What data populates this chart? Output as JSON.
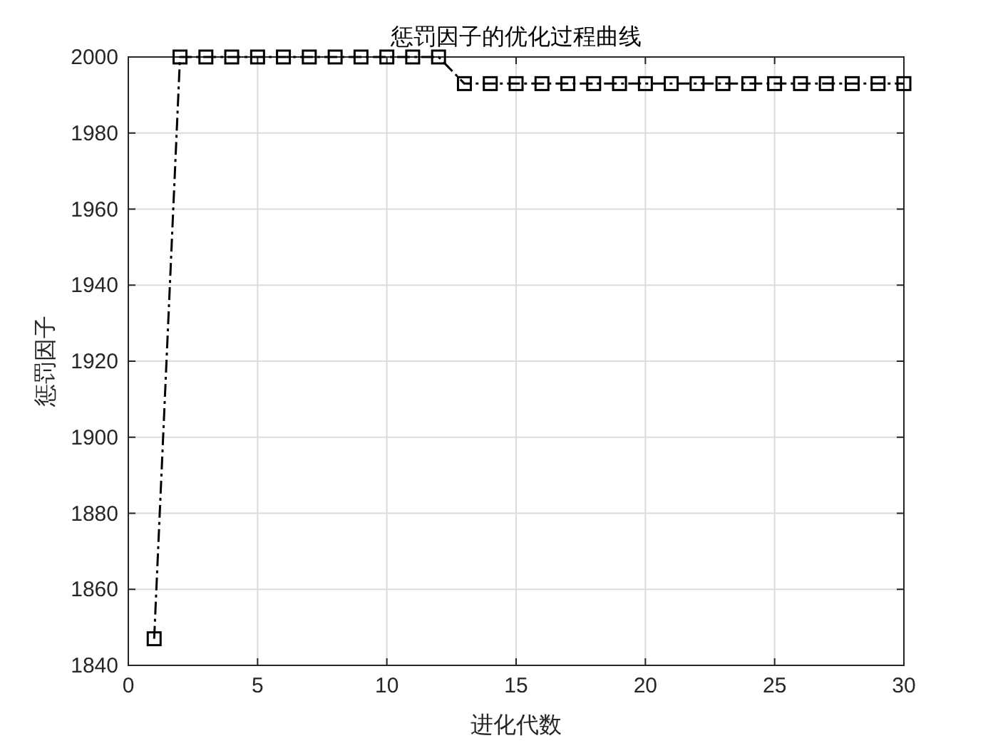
{
  "chart_data": {
    "type": "line",
    "title": "惩罚因子的优化过程曲线",
    "xlabel": "进化代数",
    "ylabel": "惩罚因子",
    "x": [
      1,
      2,
      3,
      4,
      5,
      6,
      7,
      8,
      9,
      10,
      11,
      12,
      13,
      14,
      15,
      16,
      17,
      18,
      19,
      20,
      21,
      22,
      23,
      24,
      25,
      26,
      27,
      28,
      29,
      30
    ],
    "series": [
      {
        "color": "#000000",
        "values": [
          1847,
          2000,
          2000,
          2000,
          2000,
          2000,
          2000,
          2000,
          2000,
          2000,
          2000,
          2000,
          1993,
          1993,
          1993,
          1993,
          1993,
          1993,
          1993,
          1993,
          1993,
          1993,
          1993,
          1993,
          1993,
          1993,
          1993,
          1993,
          1993,
          1993
        ]
      }
    ],
    "xlim": [
      0,
      30
    ],
    "xticks": [
      0,
      5,
      10,
      15,
      20,
      25,
      30
    ],
    "ylim": [
      1840,
      2000
    ],
    "yticks": [
      1840,
      1860,
      1880,
      1900,
      1920,
      1940,
      1960,
      1980,
      2000
    ],
    "grid": true,
    "marker": "square",
    "line_style": "dashed"
  }
}
